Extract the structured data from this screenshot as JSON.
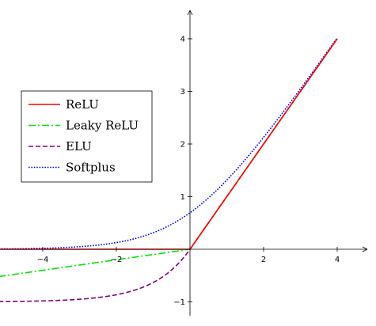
{
  "chart_data": {
    "type": "line",
    "title": "",
    "xlabel": "",
    "ylabel": "",
    "xlim": [
      -5.2,
      5.0
    ],
    "ylim": [
      -1.3,
      4.5
    ],
    "xticks": [
      -4,
      -2,
      2,
      4
    ],
    "yticks": [
      -1,
      1,
      2,
      3,
      4
    ],
    "tick_labels": {
      "x": [
        "−4",
        "−2",
        "2",
        "4"
      ],
      "y": [
        "−1",
        "1",
        "2",
        "3",
        "4"
      ]
    },
    "grid": false,
    "axis_style": "centered-arrows",
    "legend_position": "left",
    "x_domain": [
      -5.2,
      4.0
    ],
    "series": [
      {
        "name": "ReLU",
        "function": "relu",
        "color": "#ff0000",
        "style": "solid"
      },
      {
        "name": "Leaky ReLU",
        "function": "leaky_relu",
        "alpha": 0.1,
        "color": "#00e600",
        "style": "dashdot"
      },
      {
        "name": "ELU",
        "function": "elu",
        "alpha": 1.0,
        "color": "#800080",
        "style": "dashed"
      },
      {
        "name": "Softplus",
        "function": "softplus",
        "color": "#0000ff",
        "style": "dotted"
      }
    ]
  }
}
